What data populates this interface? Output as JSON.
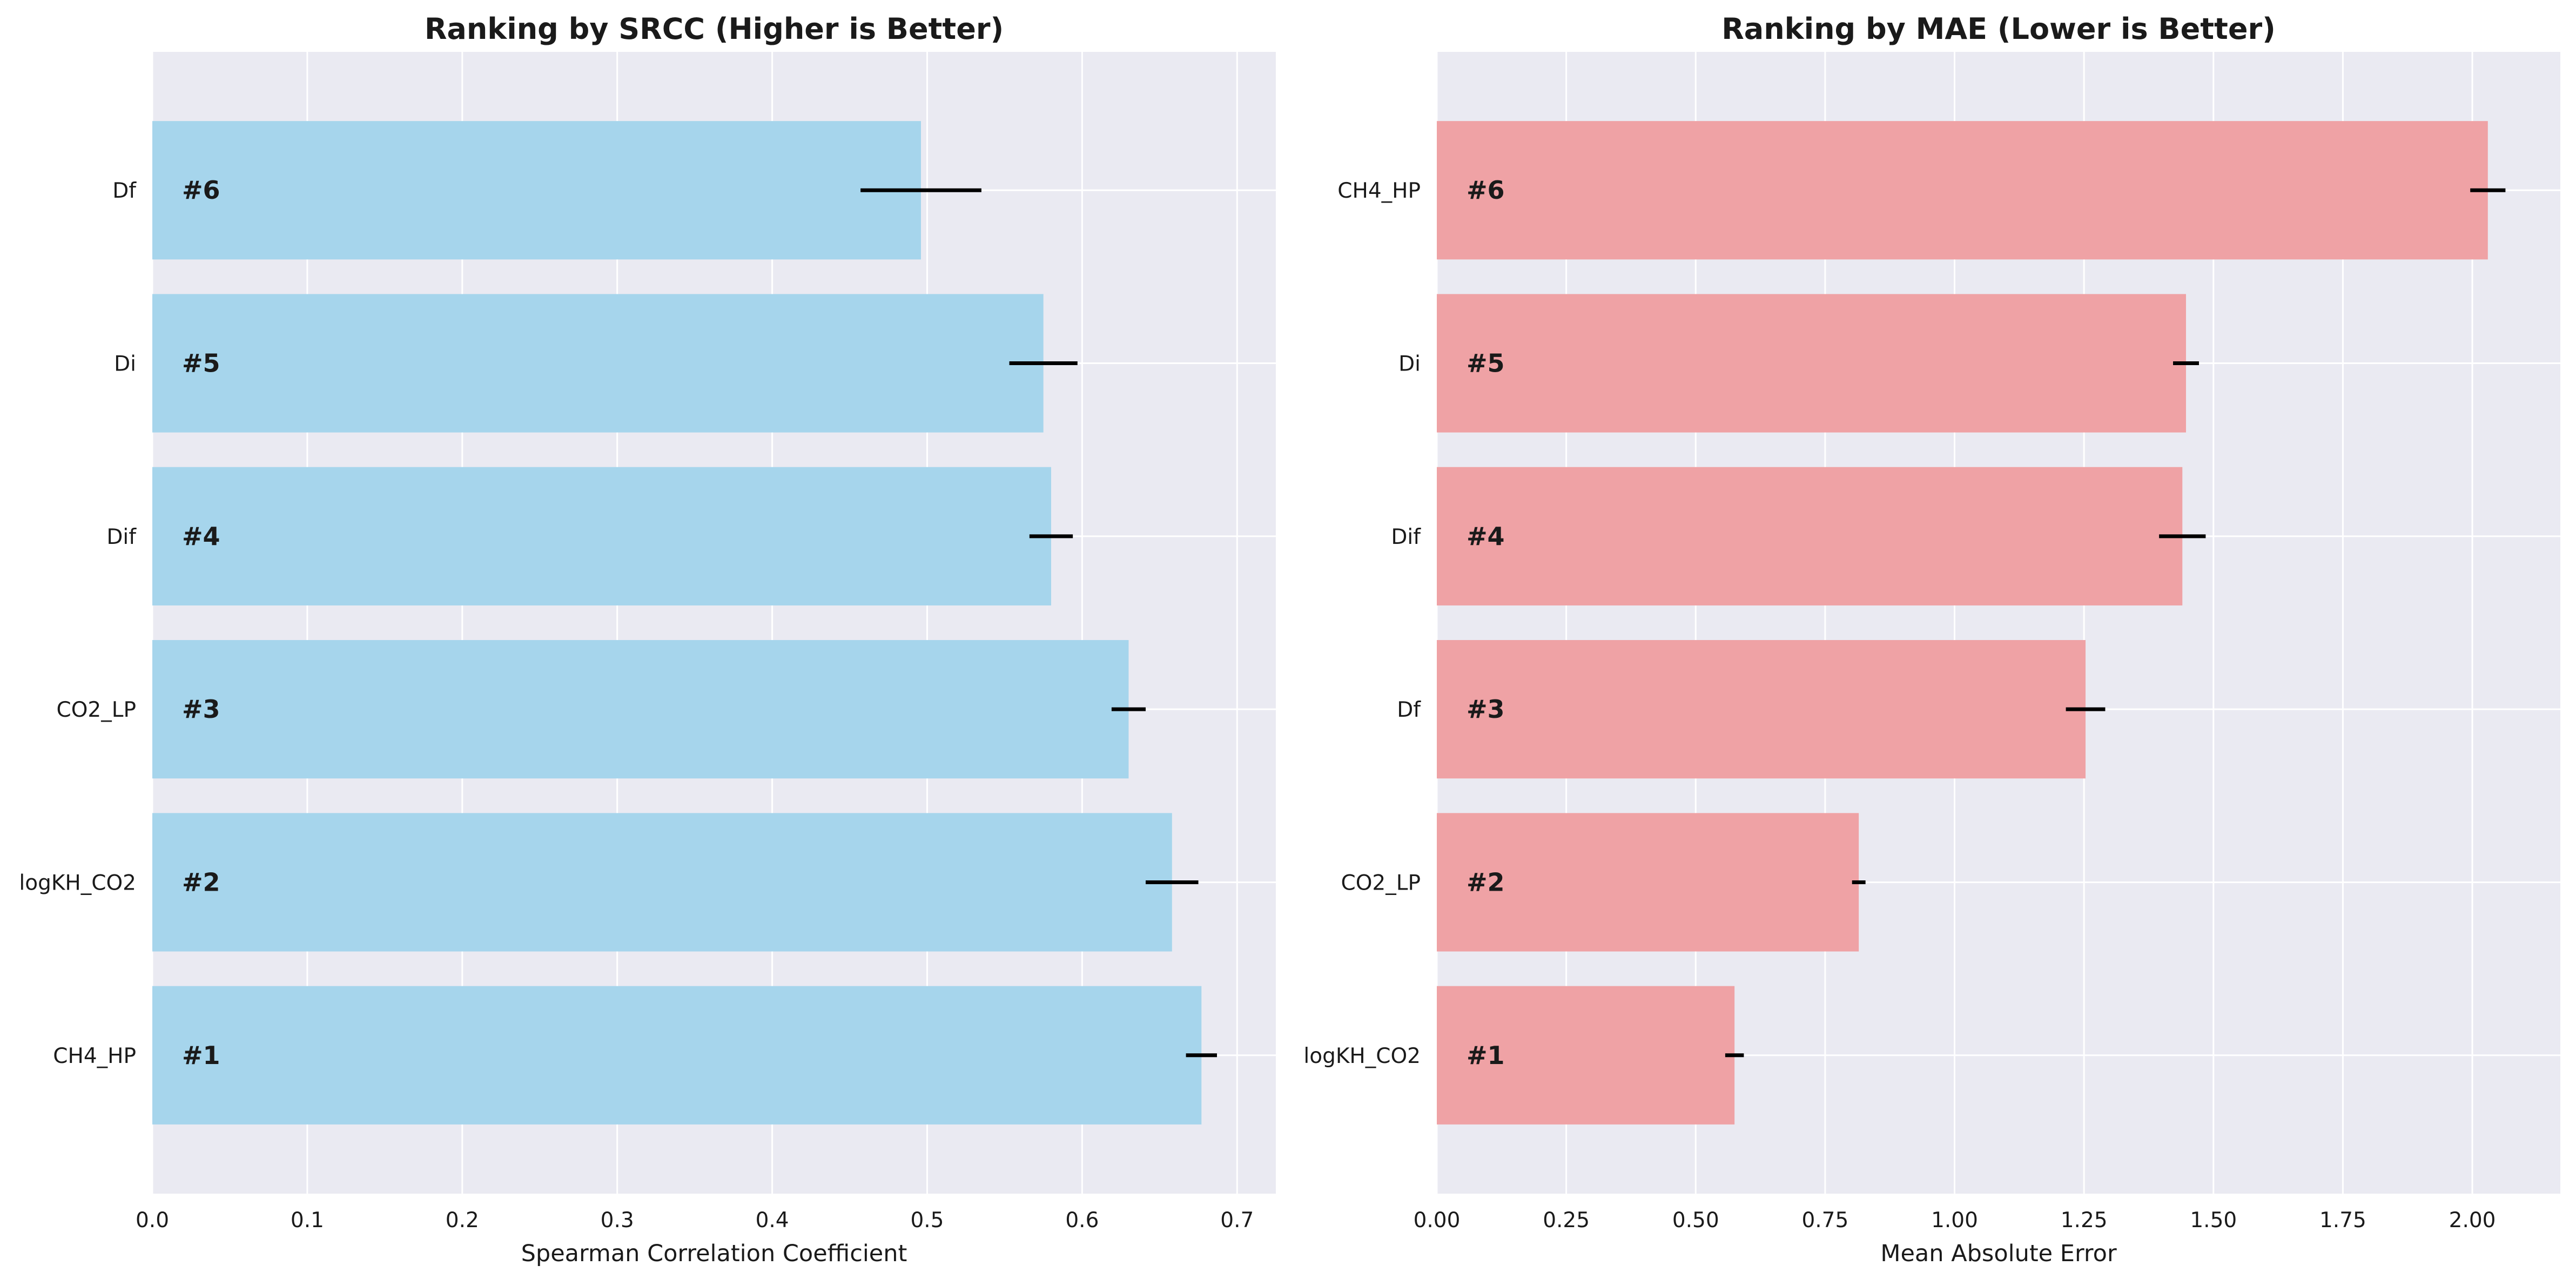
{
  "chart_data": [
    {
      "type": "bar",
      "orientation": "horizontal",
      "title": "Ranking by SRCC (Higher is Better)",
      "xlabel": "Spearman Correlation Coefficient",
      "ylabel": "",
      "categories": [
        "CH4_HP",
        "logKH_CO2",
        "CO2_LP",
        "Dif",
        "Di",
        "Df"
      ],
      "values": [
        0.677,
        0.658,
        0.63,
        0.58,
        0.575,
        0.496
      ],
      "errors": [
        0.01,
        0.017,
        0.011,
        0.014,
        0.022,
        0.039
      ],
      "rank_labels": [
        "#1",
        "#2",
        "#3",
        "#4",
        "#5",
        "#6"
      ],
      "xlim": [
        0,
        0.725
      ],
      "xticks": [
        0.0,
        0.1,
        0.2,
        0.3,
        0.4,
        0.5,
        0.6,
        0.7
      ],
      "xtick_labels": [
        "0.0",
        "0.1",
        "0.2",
        "0.3",
        "0.4",
        "0.5",
        "0.6",
        "0.7"
      ],
      "grid": true,
      "bar_color": "#a6d5ec",
      "error_color": "#000000"
    },
    {
      "type": "bar",
      "orientation": "horizontal",
      "title": "Ranking by MAE (Lower is Better)",
      "xlabel": "Mean Absolute Error",
      "ylabel": "",
      "categories": [
        "logKH_CO2",
        "CO2_LP",
        "Df",
        "Dif",
        "Di",
        "CH4_HP"
      ],
      "values": [
        0.575,
        0.815,
        1.253,
        1.44,
        1.447,
        2.03
      ],
      "errors": [
        0.018,
        0.013,
        0.038,
        0.045,
        0.025,
        0.034
      ],
      "rank_labels": [
        "#1",
        "#2",
        "#3",
        "#4",
        "#5",
        "#6"
      ],
      "xlim": [
        0,
        2.17
      ],
      "xticks": [
        0.0,
        0.25,
        0.5,
        0.75,
        1.0,
        1.25,
        1.5,
        1.75,
        2.0
      ],
      "xtick_labels": [
        "0.00",
        "0.25",
        "0.50",
        "0.75",
        "1.00",
        "1.25",
        "1.50",
        "1.75",
        "2.00"
      ],
      "grid": true,
      "bar_color": "#efa2a5",
      "error_color": "#000000"
    }
  ]
}
